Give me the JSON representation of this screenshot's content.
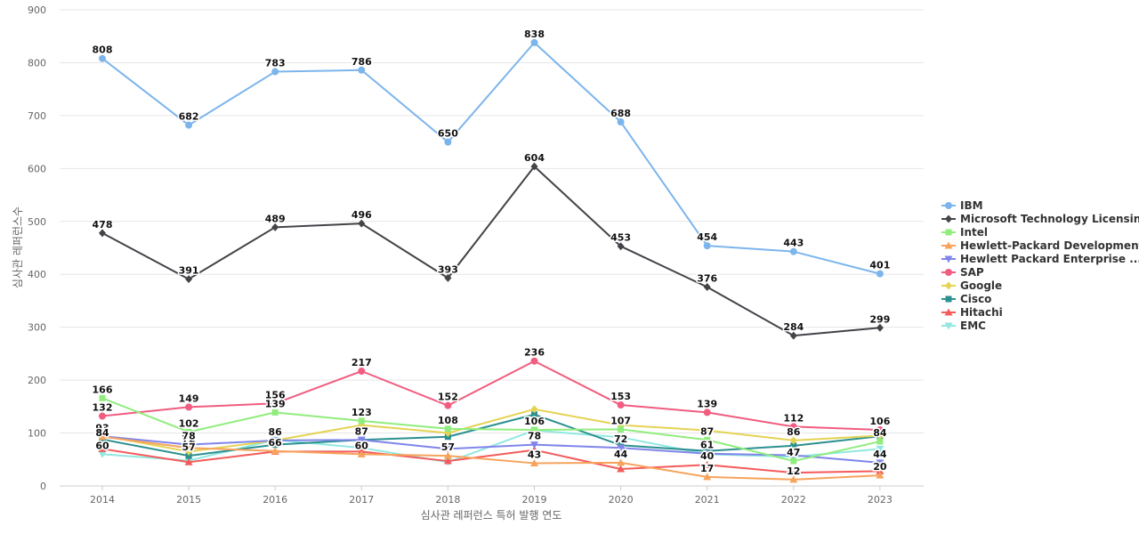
{
  "chart_data": {
    "type": "line",
    "xlabel": "심사관 레퍼런스 특허 발행 연도",
    "ylabel": "심사관 레퍼런스수",
    "ylim": [
      0,
      900
    ],
    "yticks": [
      0,
      100,
      200,
      300,
      400,
      500,
      600,
      700,
      800,
      900
    ],
    "grid": true,
    "legend_position": "right",
    "categories": [
      "2014",
      "2015",
      "2016",
      "2017",
      "2018",
      "2019",
      "2020",
      "2021",
      "2022",
      "2023"
    ],
    "series": [
      {
        "name": "IBM",
        "color": "#7cb5ec",
        "marker": "circle",
        "values": [
          808,
          682,
          783,
          786,
          650,
          838,
          688,
          454,
          443,
          401
        ],
        "labeled": true
      },
      {
        "name": "Microsoft Technology Licensing",
        "color": "#434348",
        "marker": "diamond",
        "values": [
          478,
          391,
          489,
          496,
          393,
          604,
          453,
          376,
          284,
          299
        ],
        "labeled": true
      },
      {
        "name": "Intel",
        "color": "#90ed7d",
        "marker": "square",
        "values": [
          166,
          102,
          139,
          123,
          108,
          106,
          107,
          87,
          47,
          84
        ],
        "labeled": true
      },
      {
        "name": "Hewlett-Packard Development",
        "color": "#f7a35c",
        "marker": "triangle",
        "values": [
          93,
          72,
          66,
          60,
          57,
          43,
          44,
          17,
          12,
          20
        ],
        "labeled": true
      },
      {
        "name": "Hewlett Packard Enterprise ...",
        "color": "#8085e9",
        "marker": "triangle-down",
        "values": [
          94,
          78,
          86,
          87,
          70,
          78,
          72,
          61,
          58,
          44
        ],
        "labeled": false
      },
      {
        "name": "SAP",
        "color": "#f15c80",
        "marker": "circle",
        "values": [
          132,
          149,
          156,
          217,
          152,
          236,
          153,
          139,
          112,
          106
        ],
        "labeled": true
      },
      {
        "name": "Google",
        "color": "#e4d354",
        "marker": "diamond",
        "values": [
          95,
          65,
          86,
          115,
          100,
          145,
          115,
          105,
          86,
          95
        ],
        "labeled": false
      },
      {
        "name": "Cisco",
        "color": "#2b908f",
        "marker": "square",
        "values": [
          88,
          57,
          78,
          87,
          93,
          135,
          77,
          66,
          76,
          94
        ],
        "labeled": false
      },
      {
        "name": "Hitachi",
        "color": "#f45b5b",
        "marker": "triangle",
        "values": [
          70,
          45,
          65,
          65,
          47,
          68,
          32,
          40,
          25,
          28
        ],
        "labeled": false
      },
      {
        "name": "EMC",
        "color": "#91e8e1",
        "marker": "triangle-down",
        "values": [
          60,
          48,
          87,
          72,
          45,
          105,
          92,
          60,
          55,
          70
        ],
        "labeled": false
      }
    ],
    "annotations": [
      {
        "category": "2014",
        "value": 84,
        "text": "84"
      },
      {
        "category": "2014",
        "value": 60,
        "text": "60"
      },
      {
        "category": "2015",
        "value": 78,
        "text": "78"
      },
      {
        "category": "2015",
        "value": 57,
        "text": "57"
      },
      {
        "category": "2016",
        "value": 86,
        "text": "86"
      },
      {
        "category": "2016",
        "value": 66,
        "text": "66"
      },
      {
        "category": "2017",
        "value": 87,
        "text": "87"
      },
      {
        "category": "2017",
        "value": 60,
        "text": "60"
      },
      {
        "category": "2018",
        "value": 57,
        "text": "57"
      },
      {
        "category": "2019",
        "value": 78,
        "text": "78"
      },
      {
        "category": "2019",
        "value": 43,
        "text": "43"
      },
      {
        "category": "2020",
        "value": 72,
        "text": "72"
      },
      {
        "category": "2020",
        "value": 44,
        "text": "44"
      },
      {
        "category": "2021",
        "value": 87,
        "text": "87"
      },
      {
        "category": "2021",
        "value": 61,
        "text": "61"
      },
      {
        "category": "2021",
        "value": 40,
        "text": "40"
      },
      {
        "category": "2021",
        "value": 17,
        "text": "17"
      },
      {
        "category": "2022",
        "value": 86,
        "text": "86"
      },
      {
        "category": "2022",
        "value": 47,
        "text": "47"
      },
      {
        "category": "2022",
        "value": 12,
        "text": "12"
      },
      {
        "category": "2023",
        "value": 84,
        "text": "84"
      },
      {
        "category": "2023",
        "value": 44,
        "text": "44"
      },
      {
        "category": "2023",
        "value": 20,
        "text": "20"
      }
    ]
  }
}
